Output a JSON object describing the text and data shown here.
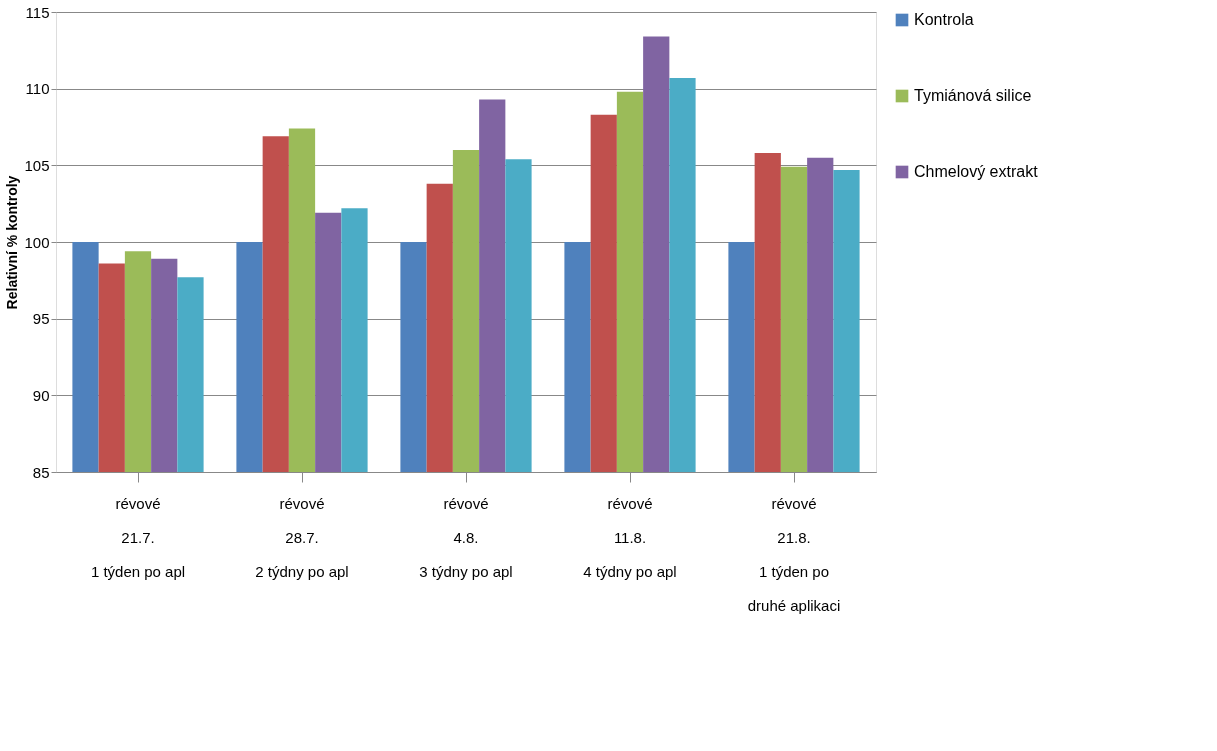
{
  "chart_data": {
    "type": "bar",
    "ylabel": "Relativní % kontroly",
    "categories": [
      "révové\n21.7.\n1 týden po apl",
      "révové\n28.7.\n2 týdny po apl",
      "révové\n4.8.\n3 týdny po apl",
      "révové\n11.8.\n4 týdny po apl",
      "révové\n21.8.\n1 týden po\ndruhé aplikaci"
    ],
    "series": [
      {
        "name": "Kontrola",
        "color": "#4f81bd",
        "values": [
          100,
          100,
          100,
          100,
          100
        ]
      },
      {
        "color": "#c0504d",
        "values": [
          98.6,
          106.9,
          103.8,
          108.3,
          105.8
        ]
      },
      {
        "name": "Tymiánová silice",
        "color": "#9bbb59",
        "values": [
          99.4,
          107.4,
          106.0,
          109.8,
          104.9
        ]
      },
      {
        "name": "Chmelový extrakt",
        "color": "#8064a2",
        "values": [
          98.9,
          101.9,
          109.3,
          113.4,
          105.5
        ]
      },
      {
        "color": "#4bacc6",
        "values": [
          97.7,
          102.2,
          105.4,
          110.7,
          104.7
        ]
      }
    ],
    "ylim": [
      85,
      115
    ],
    "yticks": [
      85,
      90,
      95,
      100,
      105,
      110,
      115
    ],
    "grid": "y",
    "legend": "right"
  }
}
